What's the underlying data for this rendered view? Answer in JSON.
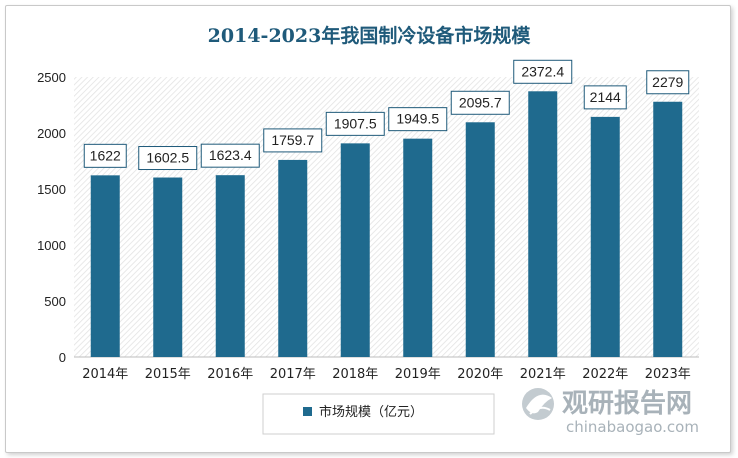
{
  "chart_data": {
    "type": "bar",
    "title": "2014-2023年我国制冷设备市场规模",
    "categories": [
      "2014年",
      "2015年",
      "2016年",
      "2017年",
      "2018年",
      "2019年",
      "2020年",
      "2021年",
      "2022年",
      "2023年"
    ],
    "series": [
      {
        "name": "市场规模（亿元）",
        "values": [
          1622,
          1602.5,
          1623.4,
          1759.7,
          1907.5,
          1949.5,
          2095.7,
          2372.4,
          2144,
          2279
        ],
        "labels": [
          "1622",
          "1602.5",
          "1623.4",
          "1759.7",
          "1907.5",
          "1949.5",
          "2095.7",
          "2372.4",
          "2144",
          "2279"
        ]
      }
    ],
    "ylim": [
      0,
      2500
    ],
    "yticks": [
      "0",
      "500",
      "1000",
      "1500",
      "2000",
      "2500"
    ],
    "xlabel": "",
    "ylabel": "",
    "grid": false,
    "legend_position": "bottom",
    "colors": {
      "bar": "#1f6a8e",
      "title": "#1f5a7a",
      "plot_hatch": "#e2e2e2",
      "label_border": "#1f5a7a"
    }
  },
  "watermark": {
    "main": "观研报告网",
    "sub": "chinabaogao.com"
  }
}
